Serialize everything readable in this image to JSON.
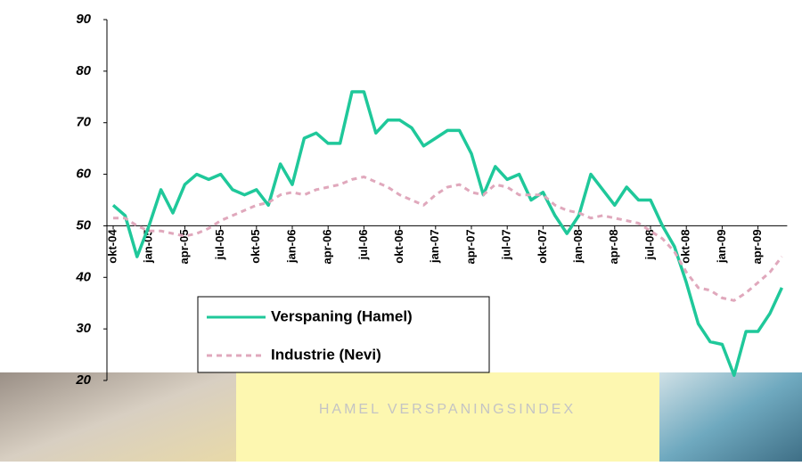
{
  "chart_data": {
    "type": "line",
    "categories": [
      "okt-04",
      null,
      null,
      "jan-05",
      null,
      null,
      "apr-05",
      null,
      null,
      "jul-05",
      null,
      null,
      "okt-05",
      null,
      null,
      "jan-06",
      null,
      null,
      "apr-06",
      null,
      null,
      "jul-06",
      null,
      null,
      "okt-06",
      null,
      null,
      "jan-07",
      null,
      null,
      "apr-07",
      null,
      null,
      "jul-07",
      null,
      null,
      "okt-07",
      null,
      null,
      "jan-08",
      null,
      null,
      "apr-08",
      null,
      null,
      "jul-08",
      null,
      null,
      "okt-08",
      null,
      null,
      "jan-09",
      null,
      null,
      "apr-09",
      null,
      null
    ],
    "series": [
      {
        "name": "Verspaning (Hamel)",
        "color": "#1fc89a",
        "dash": false,
        "values": [
          54,
          52,
          44,
          50,
          57,
          52.5,
          58,
          60,
          59,
          60,
          57,
          56,
          57,
          54,
          62,
          58,
          67,
          68,
          66,
          66,
          76,
          76,
          68,
          70.5,
          70.5,
          69,
          65.5,
          67,
          68.5,
          68.5,
          64,
          56,
          61.5,
          59,
          60,
          55,
          56.5,
          52,
          48.5,
          52,
          60,
          57,
          54,
          57.5,
          55,
          55,
          50,
          46,
          39,
          31,
          27.5,
          27,
          21,
          29.5,
          29.5,
          33,
          38
        ]
      },
      {
        "name": "Industrie (Nevi)",
        "color": "#e0a8bc",
        "dash": true,
        "values": [
          51.5,
          51.5,
          50,
          49,
          49,
          48.5,
          48,
          48.5,
          49.5,
          51,
          52,
          53,
          54,
          54.5,
          56,
          56.5,
          56,
          57,
          57.5,
          58,
          59,
          59.5,
          58.5,
          57.5,
          56,
          55,
          54,
          56,
          57.5,
          58,
          56.5,
          56,
          58,
          57.5,
          56,
          56,
          56,
          54,
          53,
          52.5,
          51.5,
          52,
          51.5,
          51,
          50.5,
          49,
          47.5,
          45,
          41,
          38,
          37.5,
          36,
          35.5,
          37,
          39,
          41,
          44
        ]
      }
    ],
    "ylim": [
      20,
      90
    ],
    "yticks": [
      20,
      30,
      40,
      50,
      60,
      70,
      80,
      90
    ],
    "x_axis_crosses": 50,
    "grid": false
  },
  "banner": {
    "text": "HAMEL VERSPANINGSINDEX"
  }
}
